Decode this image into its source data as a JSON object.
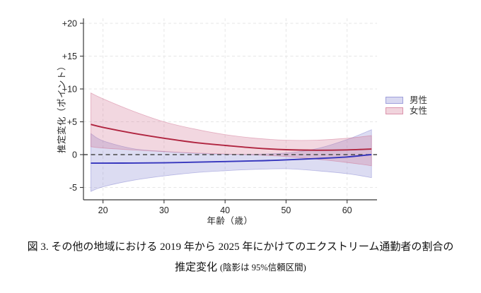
{
  "figure": {
    "caption_line1": "図 3. その他の地域における 2019 年から 2025 年にかけてのエクストリーム通勤者の割合の",
    "caption_line2_main": "推定変化 ",
    "caption_line2_note": "(陰影は 95%信頼区間)"
  },
  "chart_data": {
    "type": "line",
    "title": "",
    "xlabel": "年齢（歳）",
    "ylabel": "推定変化（ポイント）",
    "x": [
      18,
      20,
      25,
      30,
      35,
      40,
      45,
      50,
      55,
      60,
      64
    ],
    "series": [
      {
        "name": "男性",
        "line_color": "#3535bd",
        "band_color": "#8080cf",
        "line": [
          -1.3,
          -1.3,
          -1.28,
          -1.25,
          -1.15,
          -1.05,
          -0.95,
          -0.8,
          -0.6,
          -0.35,
          0.0
        ],
        "upper": [
          3.2,
          2.1,
          0.9,
          0.5,
          0.2,
          0.05,
          0.05,
          0.25,
          0.9,
          2.3,
          3.8
        ],
        "lower": [
          -5.6,
          -4.9,
          -3.9,
          -3.25,
          -2.75,
          -2.45,
          -2.25,
          -2.15,
          -2.45,
          -2.9,
          -3.5
        ]
      },
      {
        "name": "女性",
        "line_color": "#b02540",
        "band_color": "#cf7090",
        "line": [
          4.6,
          4.15,
          3.25,
          2.5,
          1.85,
          1.4,
          1.0,
          0.75,
          0.67,
          0.72,
          0.85
        ],
        "upper": [
          9.4,
          8.5,
          6.6,
          5.0,
          3.9,
          3.05,
          2.5,
          2.2,
          2.2,
          2.5,
          2.9
        ],
        "lower": [
          1.2,
          1.0,
          0.7,
          0.45,
          0.25,
          0.1,
          -0.05,
          -0.3,
          -0.7,
          -1.2,
          -1.7
        ]
      }
    ],
    "band_meaning": "95% confidence interval",
    "x_ticks": [
      20,
      30,
      40,
      50,
      60
    ],
    "y_ticks": [
      20,
      15,
      10,
      5,
      0,
      -5
    ],
    "y_tick_labels": [
      "+20",
      "+15",
      "+10",
      "+5",
      "0",
      "-5"
    ],
    "xlim": [
      16.8,
      64.9
    ],
    "ylim": [
      -6.88,
      20.75
    ],
    "zero_line": 0,
    "grid": true,
    "legend_position": "right-middle",
    "colors": {
      "axis": "#383838",
      "grid": "#e6e6e6",
      "zero_line": "#4a4a4a",
      "tick_text": "#262626"
    }
  }
}
